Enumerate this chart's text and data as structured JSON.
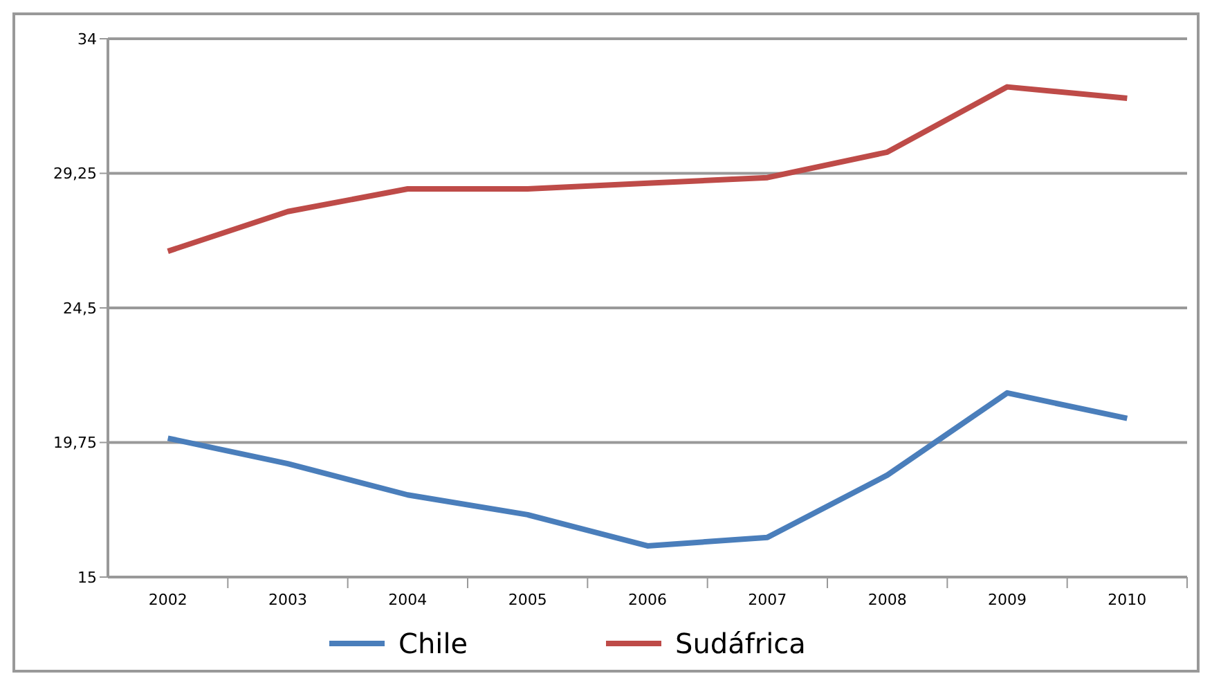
{
  "chart_data": {
    "type": "line",
    "categories": [
      "2002",
      "2003",
      "2004",
      "2005",
      "2006",
      "2007",
      "2008",
      "2009",
      "2010"
    ],
    "series": [
      {
        "name": "Chile",
        "color": "#4a7ebb",
        "values": [
          19.9,
          19.0,
          17.9,
          17.2,
          16.1,
          16.4,
          18.6,
          21.5,
          20.6
        ]
      },
      {
        "name": "Sudáfrica",
        "color": "#be4b48",
        "values": [
          26.5,
          27.9,
          28.7,
          28.7,
          28.9,
          29.1,
          30.0,
          32.3,
          31.9
        ]
      }
    ],
    "ylim": [
      15,
      34
    ],
    "yticks": [
      15,
      {
        "value": 19.75,
        "label": "19,75"
      },
      {
        "value": 24.5,
        "label": "24,5"
      },
      {
        "value": 29.25,
        "label": "29,25"
      },
      34
    ],
    "grid": "y",
    "legend": "bottom",
    "marker": "none",
    "line_style": "solid"
  }
}
